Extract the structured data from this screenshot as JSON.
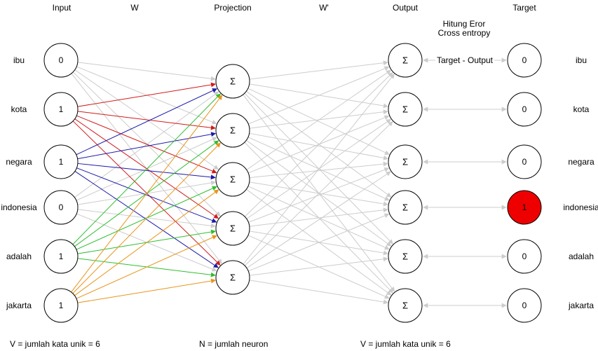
{
  "headers": {
    "input": "Input",
    "w": "W",
    "projection": "Projection",
    "w_prime": "W'",
    "output": "Output",
    "target": "Target"
  },
  "error_note": {
    "line1": "Hitung Eror",
    "line2": "Cross entropy",
    "arrow_label": "Target - Output"
  },
  "words": [
    "ibu",
    "kota",
    "negara",
    "indonesia",
    "adalah",
    "jakarta"
  ],
  "input_values": [
    "0",
    "1",
    "1",
    "0",
    "1",
    "1"
  ],
  "projection_symbol": "Σ",
  "projection_count": 5,
  "output_symbol": "Σ",
  "target_values": [
    "0",
    "0",
    "0",
    "1",
    "0",
    "0"
  ],
  "target_highlight_index": 3,
  "colors": {
    "edge_inactive": "#cccccc",
    "edge_kota": "#d11a1a",
    "edge_negara": "#1a1aa8",
    "edge_adalah": "#2fbf2f",
    "edge_jakarta": "#e8941a",
    "target_highlight": "#ee0000"
  },
  "footer": {
    "v_input": "V = jumlah kata unik = 6",
    "n_projection": "N = jumlah neuron",
    "v_output": "V = jumlah kata unik = 6"
  }
}
